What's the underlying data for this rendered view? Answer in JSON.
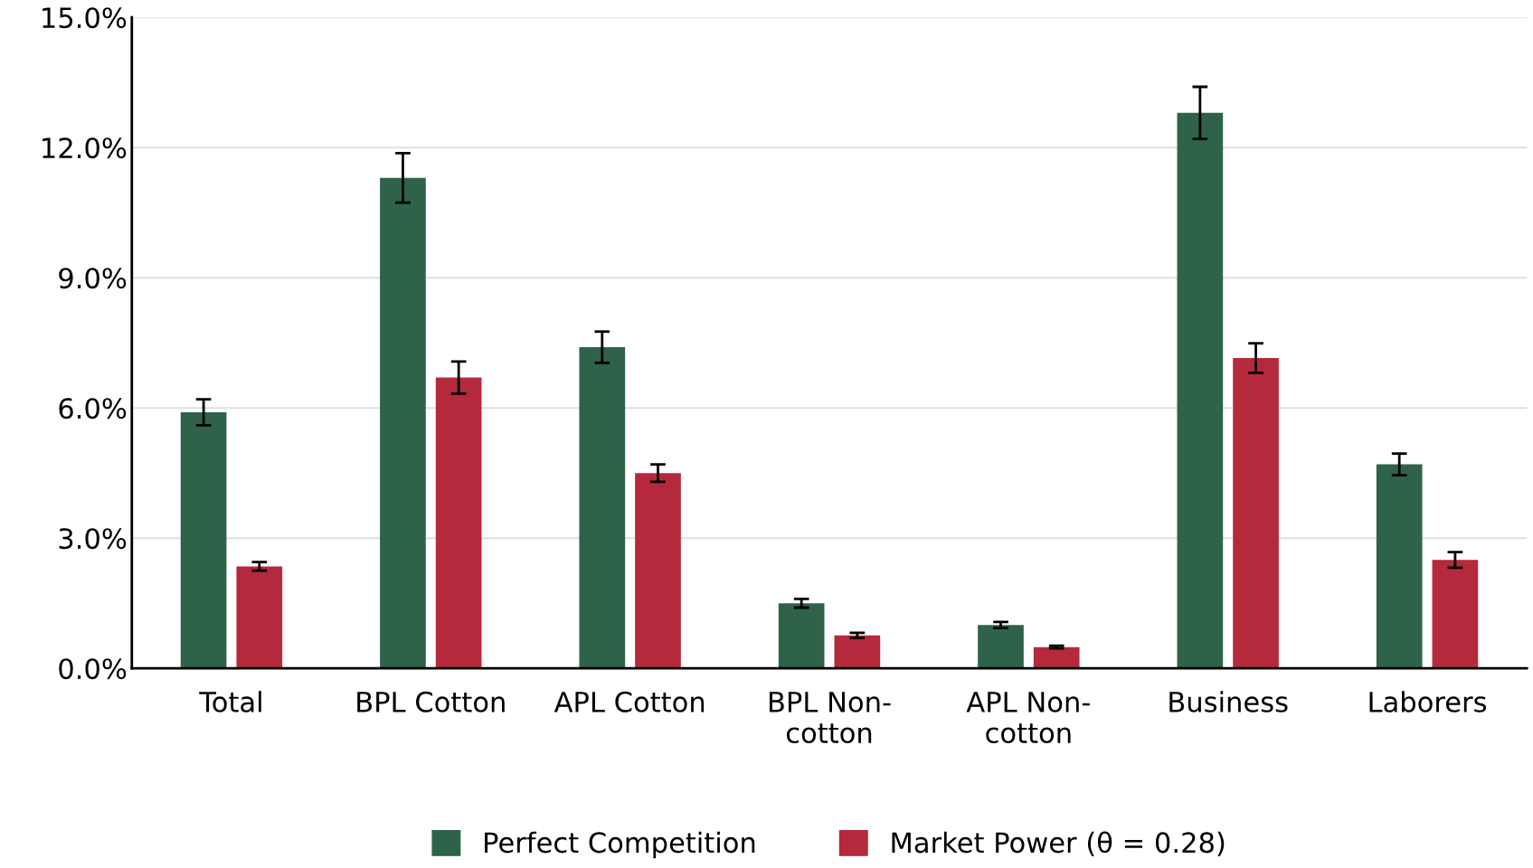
{
  "chart_data": {
    "type": "bar",
    "categories": [
      "Total",
      "BPL Cotton",
      "APL Cotton",
      "BPL Non-\ncotton",
      "APL Non-\ncotton",
      "Business",
      "Laborers"
    ],
    "series": [
      {
        "name": "Perfect Competition",
        "color": "#2e6349",
        "values": [
          5.9,
          11.3,
          7.4,
          1.5,
          1.0,
          12.8,
          4.7
        ],
        "errors": [
          0.3,
          0.57,
          0.36,
          0.1,
          0.07,
          0.6,
          0.25
        ]
      },
      {
        "name": "Market Power (θ = 0.28)",
        "color": "#b5293d",
        "values": [
          2.35,
          6.7,
          4.5,
          0.76,
          0.49,
          7.15,
          2.5
        ],
        "errors": [
          0.1,
          0.37,
          0.2,
          0.06,
          0.03,
          0.34,
          0.18
        ]
      }
    ],
    "ylim": [
      0,
      15
    ],
    "yticks": [
      {
        "value": 0,
        "label": "0.0%"
      },
      {
        "value": 3,
        "label": "3.0%"
      },
      {
        "value": 6,
        "label": "6.0%"
      },
      {
        "value": 9,
        "label": "9.0%"
      },
      {
        "value": 12,
        "label": "12.0%"
      },
      {
        "value": 15,
        "label": "15.0%"
      }
    ],
    "grid": "y",
    "legend": "bottom"
  }
}
